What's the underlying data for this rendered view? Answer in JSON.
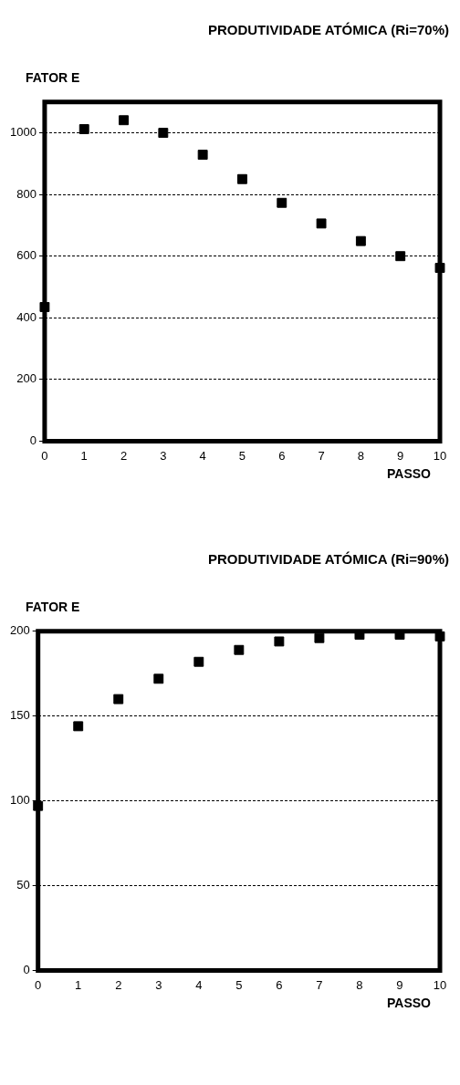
{
  "chart_data": [
    {
      "type": "scatter",
      "title": "PRODUTIVIDADE ATÓMICA (Ri=70%)",
      "xlabel": "PASSO",
      "ylabel": "FATOR  E",
      "x": [
        0,
        1,
        2,
        3,
        4,
        5,
        6,
        7,
        8,
        9,
        10
      ],
      "values": [
        435,
        1012,
        1041,
        1000,
        929,
        850,
        773,
        706,
        649,
        600,
        562
      ],
      "color": "#000000",
      "xlim": [
        0,
        10
      ],
      "xticks": [
        0,
        1,
        2,
        3,
        4,
        5,
        6,
        7,
        8,
        9,
        10
      ],
      "ylim": [
        0,
        1100
      ],
      "yticks": [
        0,
        200,
        400,
        600,
        800,
        1000
      ],
      "grid": "y",
      "marker": "square"
    },
    {
      "type": "scatter",
      "title": "PRODUTIVIDADE ATÓMICA (Ri=90%)",
      "xlabel": "PASSO",
      "ylabel": "FATOR E",
      "x": [
        0,
        1,
        2,
        3,
        4,
        5,
        6,
        7,
        8,
        9,
        10
      ],
      "values": [
        97,
        144,
        160,
        172,
        182,
        189,
        194,
        196,
        198,
        198,
        197
      ],
      "color": "#000000",
      "xlim": [
        0,
        10
      ],
      "xticks": [
        0,
        1,
        2,
        3,
        4,
        5,
        6,
        7,
        8,
        9,
        10
      ],
      "ylim": [
        0,
        200
      ],
      "yticks": [
        0,
        50,
        100,
        150,
        200
      ],
      "grid": "y",
      "marker": "square"
    }
  ]
}
